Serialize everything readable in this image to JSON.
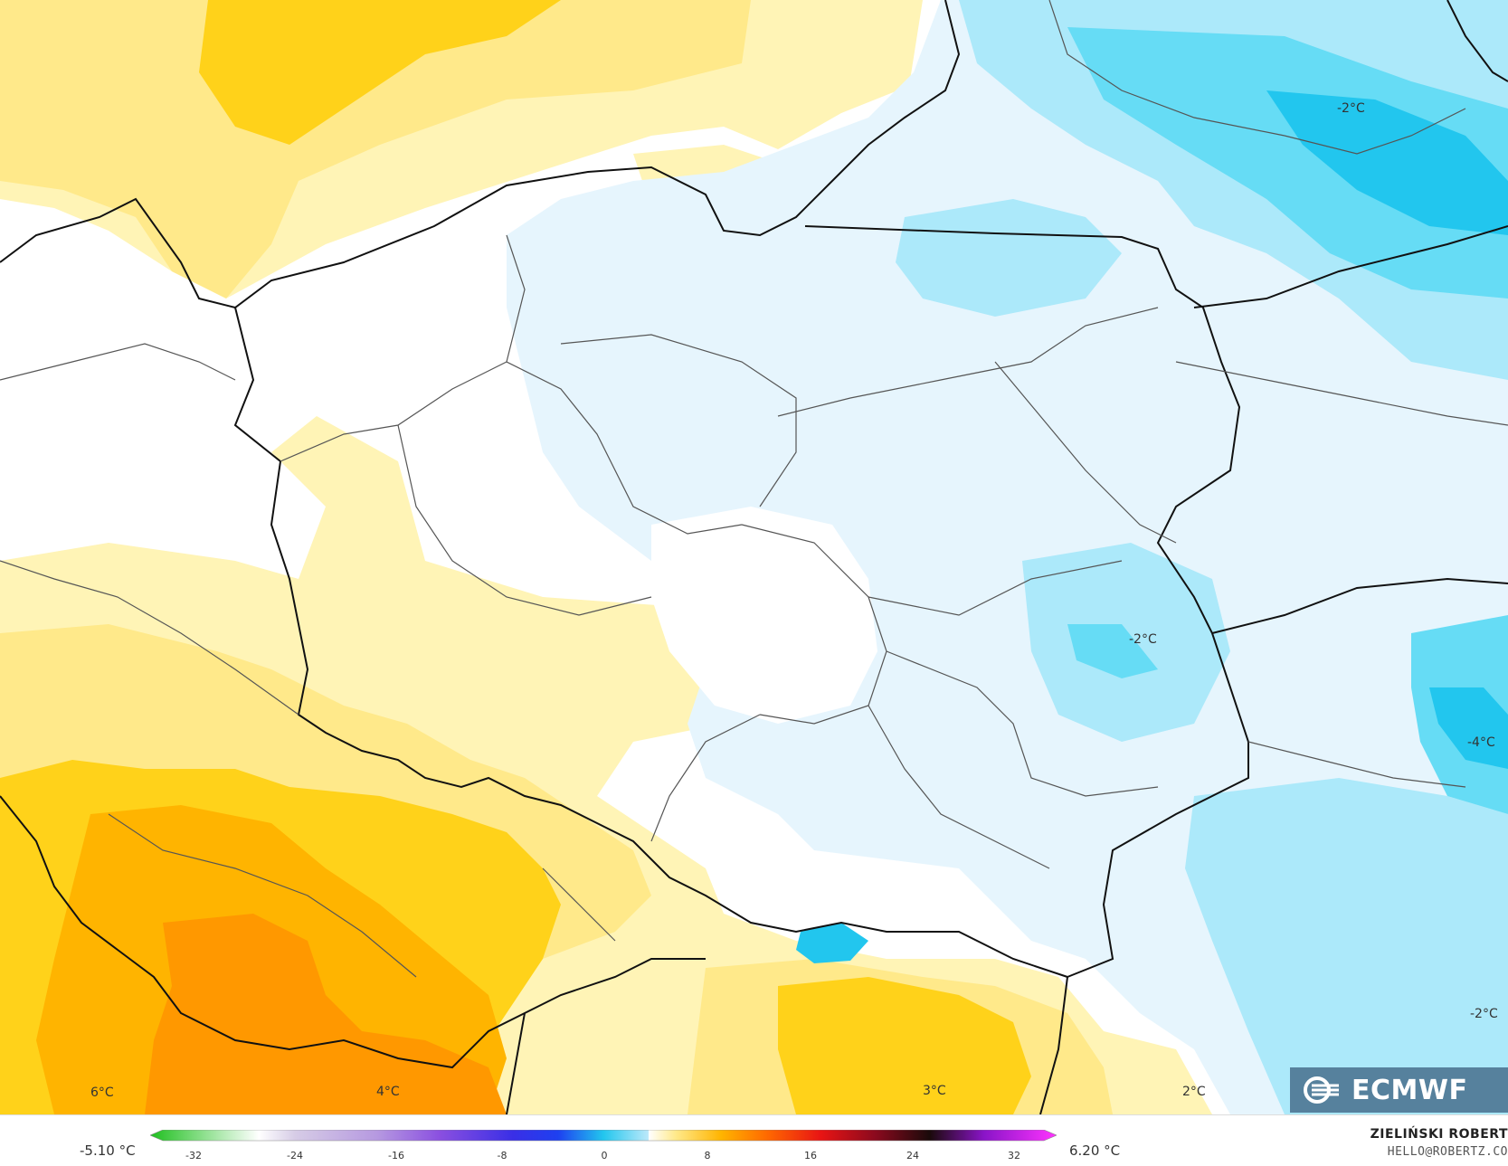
{
  "map": {
    "contour_labels": [
      {
        "id": "label-nw-minus2",
        "text": "-2°C"
      },
      {
        "id": "label-east-minus2",
        "text": "-2°C"
      },
      {
        "id": "label-se-minus4",
        "text": "-4°C"
      },
      {
        "id": "label-se-minus2",
        "text": "-2°C"
      },
      {
        "id": "label-sw-6",
        "text": "6°C"
      },
      {
        "id": "label-s-4",
        "text": "4°C"
      },
      {
        "id": "label-s-3",
        "text": "3°C"
      },
      {
        "id": "label-s-2",
        "text": "2°C"
      }
    ],
    "colors": {
      "cold_strong": "#22c6ee",
      "cold": "#66dcf5",
      "cold_light": "#ace9fa",
      "cold_faint": "#e6f5fd",
      "neutral": "#ffffff",
      "warm_faint": "#fff4b6",
      "warm_light": "#ffe98a",
      "warm": "#ffd21a",
      "warm_strong": "#ffb400",
      "warm_orange": "#ff9800",
      "border_line": "#111111",
      "region_line": "#555555"
    }
  },
  "logo": {
    "text": "ECMWF",
    "icon": "ecmwf-logo-icon"
  },
  "legend": {
    "min_value": "-5.10 °C",
    "max_value": "6.20 °C",
    "ticks": [
      "-32",
      "-24",
      "-16",
      "-8",
      "0",
      "8",
      "16",
      "24",
      "32"
    ]
  },
  "credit": {
    "author": "ZIELIŃSKI ROBERT",
    "email": "HELLO@ROBERTZ.CO"
  }
}
